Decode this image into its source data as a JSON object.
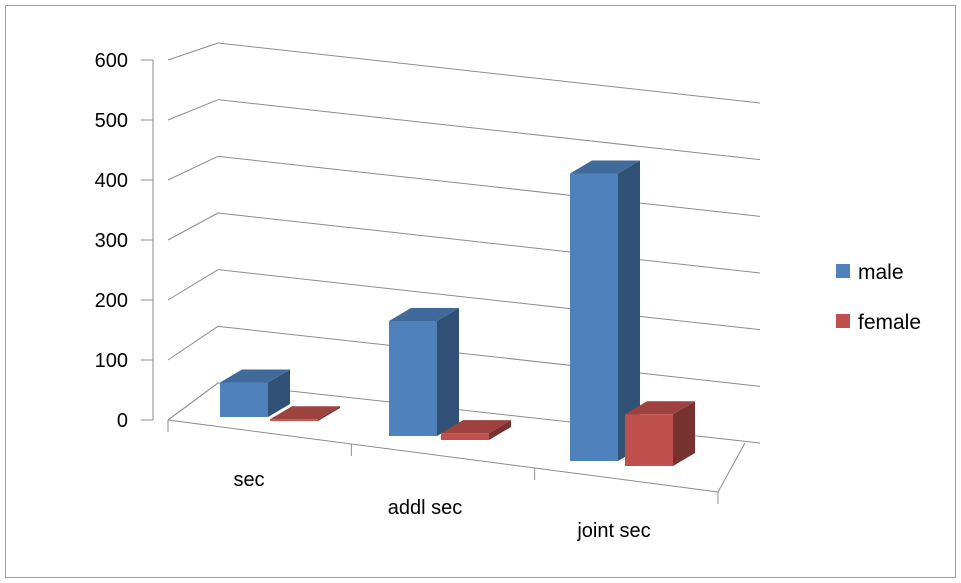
{
  "chart_data": {
    "type": "bar",
    "style": "3d-clustered-column",
    "title": "",
    "xlabel": "",
    "ylabel": "",
    "categories": [
      "sec",
      "addl sec",
      "joint sec"
    ],
    "series": [
      {
        "name": "male",
        "values": [
          60,
          200,
          500
        ],
        "color": "#4f81bd"
      },
      {
        "name": "female",
        "values": [
          3,
          12,
          90
        ],
        "color": "#c0504d"
      }
    ],
    "ylim": [
      0,
      600
    ],
    "yticks": [
      0,
      100,
      200,
      300,
      400,
      500,
      600
    ],
    "grid": true,
    "legend": "right"
  }
}
